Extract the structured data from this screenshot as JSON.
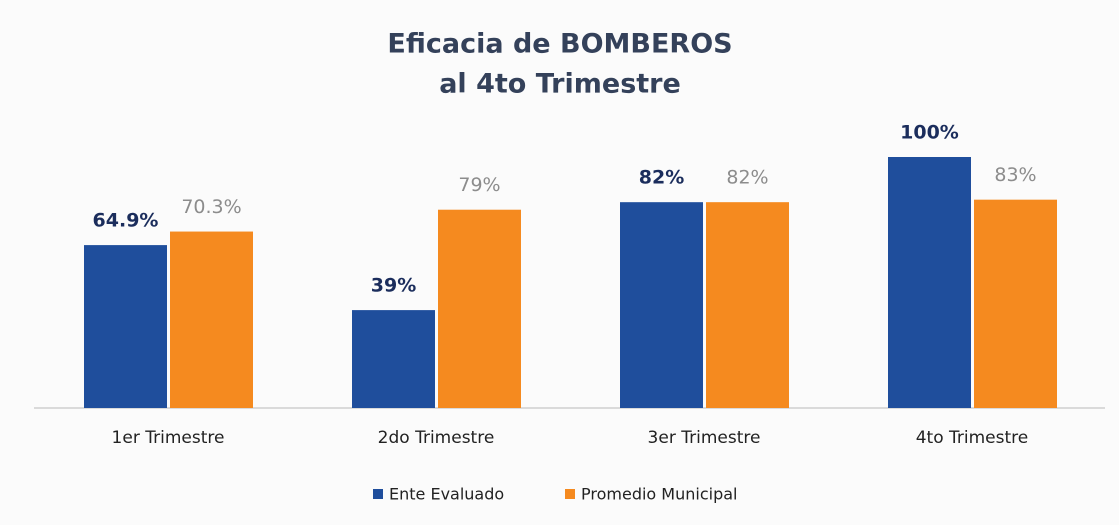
{
  "chart_data": {
    "type": "bar",
    "title": [
      "Eficacia  de BOMBEROS",
      "al 4to Trimestre"
    ],
    "categories": [
      "1er Trimestre",
      "2do Trimestre",
      "3er Trimestre",
      "4to Trimestre"
    ],
    "ylim": [
      0,
      100
    ],
    "series": [
      {
        "name": "Ente Evaluado",
        "color": "#1f4e9c",
        "values": [
          64.9,
          39,
          82,
          100
        ],
        "value_labels": [
          "64.9%",
          "39%",
          "82%",
          "100%"
        ]
      },
      {
        "name": "Promedio Municipal",
        "color": "#f58a1f",
        "values": [
          70.3,
          79,
          82,
          83
        ],
        "value_labels": [
          "70.3%",
          "79%",
          "82%",
          "83%"
        ]
      }
    ],
    "legend": "bottom"
  }
}
